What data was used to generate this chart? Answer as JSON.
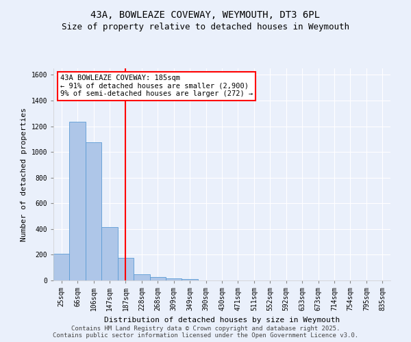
{
  "title_line1": "43A, BOWLEAZE COVEWAY, WEYMOUTH, DT3 6PL",
  "title_line2": "Size of property relative to detached houses in Weymouth",
  "xlabel": "Distribution of detached houses by size in Weymouth",
  "ylabel": "Number of detached properties",
  "bar_labels": [
    "25sqm",
    "66sqm",
    "106sqm",
    "147sqm",
    "187sqm",
    "228sqm",
    "268sqm",
    "309sqm",
    "349sqm",
    "390sqm",
    "430sqm",
    "471sqm",
    "511sqm",
    "552sqm",
    "592sqm",
    "633sqm",
    "673sqm",
    "714sqm",
    "754sqm",
    "795sqm",
    "835sqm"
  ],
  "bar_values": [
    205,
    1235,
    1075,
    415,
    175,
    50,
    25,
    15,
    10,
    0,
    0,
    0,
    0,
    0,
    0,
    0,
    0,
    0,
    0,
    0,
    0
  ],
  "bar_color": "#aec6e8",
  "bar_edge_color": "#5b9bd5",
  "red_line_index": 4,
  "annotation_text": "43A BOWLEAZE COVEWAY: 185sqm\n← 91% of detached houses are smaller (2,900)\n9% of semi-detached houses are larger (272) →",
  "annotation_box_color": "white",
  "annotation_box_edge_color": "red",
  "red_line_color": "red",
  "ylim": [
    0,
    1650
  ],
  "yticks": [
    0,
    200,
    400,
    600,
    800,
    1000,
    1200,
    1400,
    1600
  ],
  "background_color": "#eaf0fb",
  "grid_color": "white",
  "footer_line1": "Contains HM Land Registry data © Crown copyright and database right 2025.",
  "footer_line2": "Contains public sector information licensed under the Open Government Licence v3.0.",
  "title_fontsize": 10,
  "subtitle_fontsize": 9,
  "axis_label_fontsize": 8,
  "tick_fontsize": 7,
  "annotation_fontsize": 7.5,
  "footer_fontsize": 6.5
}
